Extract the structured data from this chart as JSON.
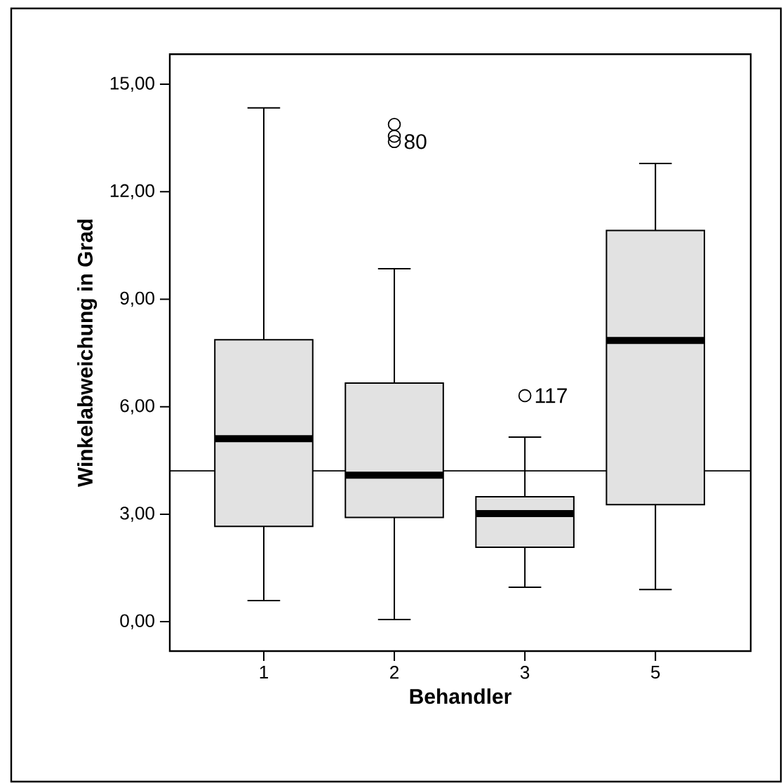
{
  "chart_data": {
    "type": "box",
    "xlabel": "Behandler",
    "ylabel": "Winkelabweichung in Grad",
    "categories": [
      "1",
      "2",
      "3",
      "5"
    ],
    "boxes": [
      {
        "low": 0.59,
        "q1": 2.66,
        "median": 5.11,
        "q3": 7.87,
        "high": 14.34
      },
      {
        "low": 0.06,
        "q1": 2.91,
        "median": 4.09,
        "q3": 6.66,
        "high": 9.85,
        "outliers": [
          13.88,
          13.55,
          13.4
        ]
      },
      {
        "low": 0.96,
        "q1": 2.08,
        "median": 3.02,
        "q3": 3.49,
        "high": 5.15,
        "outliers": [
          6.31
        ]
      },
      {
        "low": 0.9,
        "q1": 3.27,
        "median": 7.85,
        "q3": 10.92,
        "high": 12.79
      }
    ],
    "color": "#e2e2e2",
    "ylim": [
      -0.82,
      15.84
    ],
    "yticks": [
      {
        "value": 0,
        "label": "0,00"
      },
      {
        "value": 3,
        "label": "3,00"
      },
      {
        "value": 6,
        "label": "6,00"
      },
      {
        "value": 9,
        "label": "9,00"
      },
      {
        "value": 12,
        "label": "12,00"
      },
      {
        "value": 15,
        "label": "15,00"
      }
    ],
    "ref_lines": [
      {
        "axis": "y",
        "value": 4.21
      }
    ],
    "annotations": [
      "80",
      "117"
    ]
  }
}
